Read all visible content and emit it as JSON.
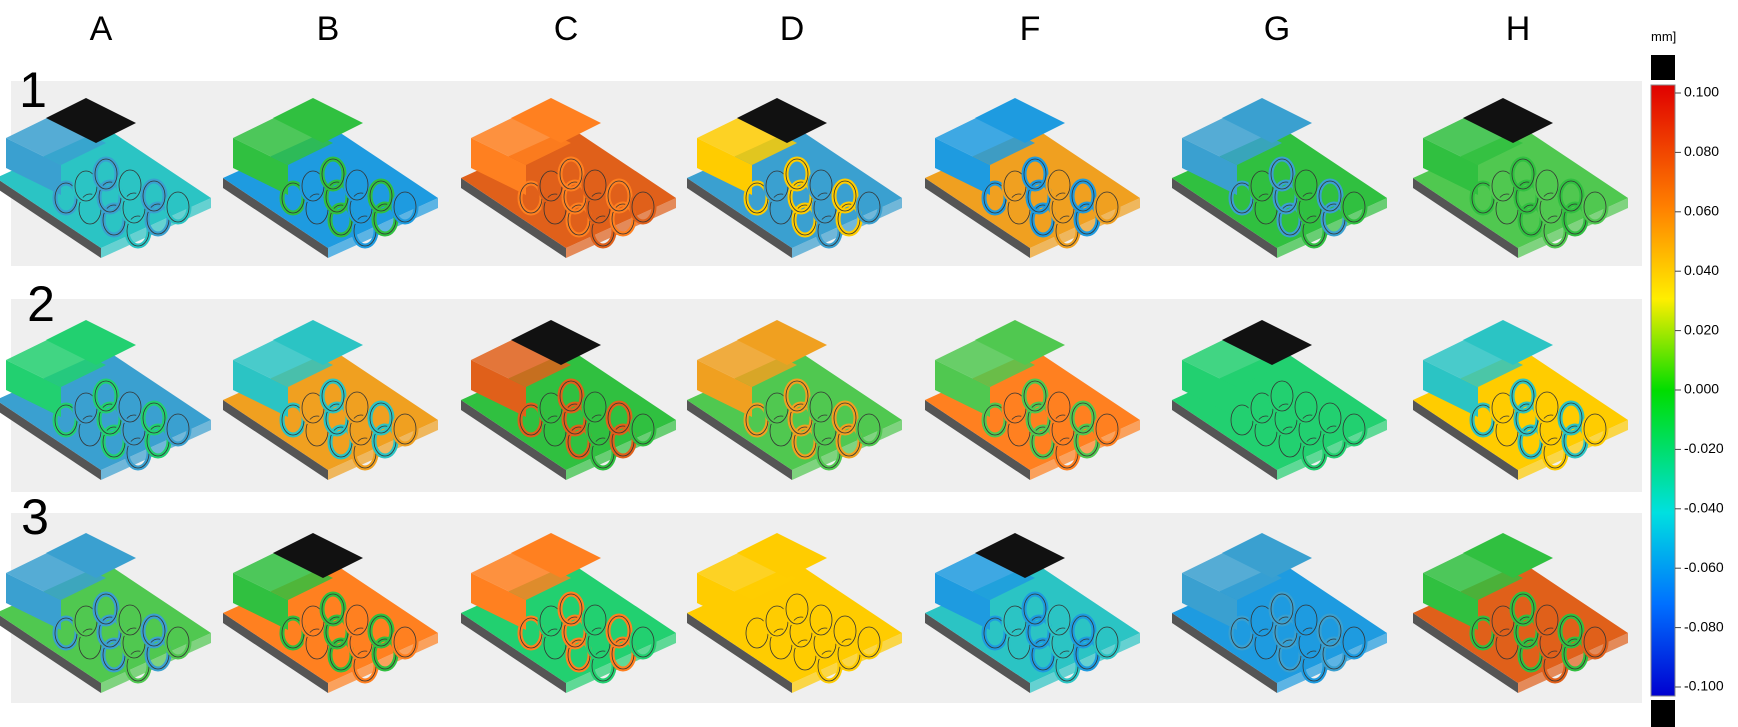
{
  "columns": [
    "A",
    "B",
    "C",
    "D",
    "F",
    "G",
    "H"
  ],
  "rows": [
    "1",
    "2",
    "3"
  ],
  "colorbar": {
    "unit": "mm]",
    "ylim": [
      -0.1,
      0.1
    ],
    "ticks": [
      {
        "value": 0.1,
        "label": "0.100"
      },
      {
        "value": 0.08,
        "label": "0.080"
      },
      {
        "value": 0.06,
        "label": "0.060"
      },
      {
        "value": 0.04,
        "label": "0.040"
      },
      {
        "value": 0.02,
        "label": "0.020"
      },
      {
        "value": 0,
        "label": "0.000"
      },
      {
        "value": -0.02,
        "label": "-0.020"
      },
      {
        "value": -0.04,
        "label": "-0.040"
      },
      {
        "value": -0.06,
        "label": "-0.060"
      },
      {
        "value": -0.08,
        "label": "-0.080"
      },
      {
        "value": -0.1,
        "label": "-0.100"
      }
    ]
  }
}
